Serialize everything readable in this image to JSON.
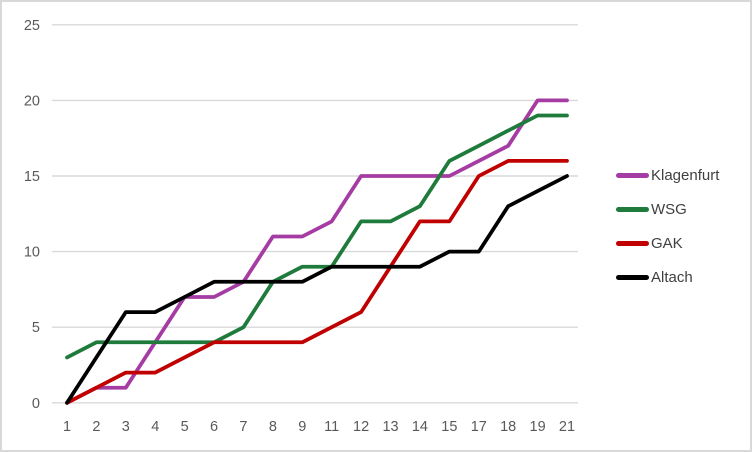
{
  "chart_data": {
    "type": "line",
    "title": "",
    "xlabel": "",
    "ylabel": "",
    "categories": [
      "1",
      "2",
      "3",
      "4",
      "5",
      "6",
      "7",
      "8",
      "9",
      "11",
      "12",
      "13",
      "14",
      "15",
      "17",
      "18",
      "19",
      "21"
    ],
    "series": [
      {
        "name": "Klagenfurt",
        "color": "#A53CA3",
        "values": [
          0,
          1,
          1,
          4,
          7,
          7,
          8,
          11,
          11,
          12,
          15,
          15,
          15,
          15,
          16,
          17,
          20,
          20
        ]
      },
      {
        "name": "WSG",
        "color": "#1F7B3C",
        "values": [
          3,
          4,
          4,
          4,
          4,
          4,
          5,
          8,
          9,
          9,
          12,
          12,
          13,
          16,
          17,
          18,
          19,
          19
        ]
      },
      {
        "name": "GAK",
        "color": "#C00000",
        "values": [
          0,
          1,
          2,
          2,
          3,
          4,
          4,
          4,
          4,
          5,
          6,
          9,
          12,
          12,
          15,
          16,
          16,
          16
        ]
      },
      {
        "name": "Altach",
        "color": "#000000",
        "values": [
          0,
          3,
          6,
          6,
          7,
          8,
          8,
          8,
          8,
          9,
          9,
          9,
          9,
          10,
          10,
          13,
          14,
          15
        ]
      }
    ],
    "y_ticks": [
      "0",
      "5",
      "10",
      "15",
      "20",
      "25"
    ],
    "ylim": [
      0,
      25
    ],
    "grid": "horizontal",
    "gridline_color": "#D9D9D9",
    "axis_text_color": "#595959",
    "legend_text_color": "#3F3F3F",
    "legend_position": "right"
  }
}
